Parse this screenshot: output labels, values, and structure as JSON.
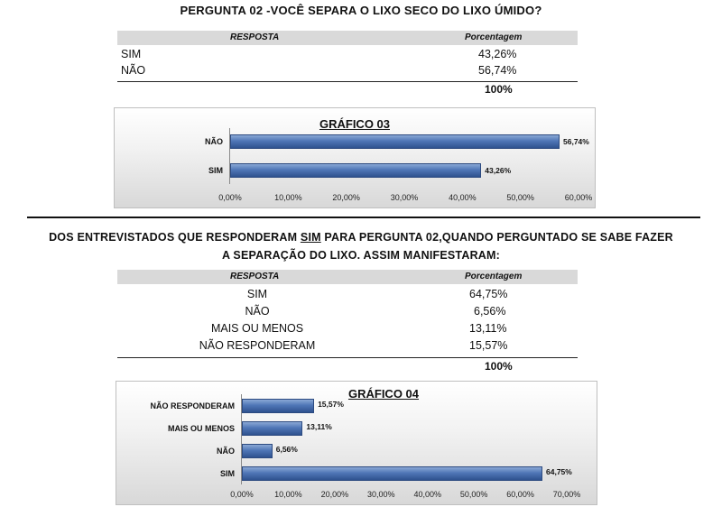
{
  "q02": {
    "title": "PERGUNTA 02 -VOCÊ SEPARA O LIXO SECO  DO LIXO ÚMIDO?",
    "header": {
      "col1": "RESPOSTA",
      "col2": "Porcentagem"
    },
    "rows": [
      {
        "label": "SIM",
        "value": "43,26%"
      },
      {
        "label": "NÃO",
        "value": "56,74%"
      }
    ],
    "total": "100%"
  },
  "chart03": {
    "title": "GRÁFICO 03",
    "type": "bar",
    "categories": [
      "NÃO",
      "SIM"
    ],
    "values": [
      56.74,
      43.26
    ],
    "value_labels": [
      "56,74%",
      "43,26%"
    ],
    "xlim": [
      0,
      60
    ],
    "ticks": [
      "0,00%",
      "10,00%",
      "20,00%",
      "30,00%",
      "40,00%",
      "50,00%",
      "60,00%"
    ]
  },
  "section2": {
    "title_pre": "DOS ENTREVISTADOS QUE RESPONDERAM ",
    "title_sim": "SIM",
    "title_post": " PARA PERGUNTA 02,QUANDO PERGUNTADO SE SABE FAZER",
    "title_line2": "A SEPARAÇÃO DO LIXO. ASSIM MANIFESTARAM:",
    "header": {
      "col1": "RESPOSTA",
      "col2": "Porcentagem"
    },
    "rows": [
      {
        "label": "SIM",
        "value": "64,75%"
      },
      {
        "label": "NÃO",
        "value": "6,56%"
      },
      {
        "label": "MAIS OU MENOS",
        "value": "13,11%"
      },
      {
        "label": "NÃO RESPONDERAM",
        "value": "15,57%"
      }
    ],
    "total": "100%"
  },
  "chart_data": [
    {
      "type": "bar",
      "title": "GRÁFICO 03",
      "categories": [
        "NÃO",
        "SIM"
      ],
      "values": [
        56.74,
        43.26
      ],
      "xlim": [
        0,
        60
      ]
    },
    {
      "type": "bar",
      "title": "GRÁFICO 04",
      "categories": [
        "NÃO RESPONDERAM",
        "MAIS OU MENOS",
        "NÃO",
        "SIM"
      ],
      "values": [
        15.57,
        13.11,
        6.56,
        64.75
      ],
      "xlim": [
        0,
        70
      ]
    }
  ],
  "chart04": {
    "title": "GRÁFICO 04",
    "type": "bar",
    "categories": [
      "NÃO RESPONDERAM",
      "MAIS OU MENOS",
      "NÃO",
      "SIM"
    ],
    "values": [
      15.57,
      13.11,
      6.56,
      64.75
    ],
    "value_labels": [
      "15,57%",
      "13,11%",
      "6,56%",
      "64,75%"
    ],
    "xlim": [
      0,
      70
    ],
    "ticks": [
      "0,00%",
      "10,00%",
      "20,00%",
      "30,00%",
      "40,00%",
      "50,00%",
      "60,00%",
      "70,00%"
    ]
  }
}
